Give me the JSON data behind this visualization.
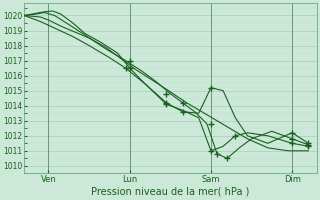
{
  "xlabel": "Pression niveau de la mer( hPa )",
  "bg_color": "#cce8d8",
  "grid_major_color": "#aaccbb",
  "grid_minor_color": "#bbddcc",
  "line_color": "#1a6020",
  "ylim": [
    1009.5,
    1020.8
  ],
  "yticks": [
    1010,
    1011,
    1012,
    1013,
    1014,
    1015,
    1016,
    1017,
    1018,
    1019,
    1020
  ],
  "xlim": [
    0,
    14.4
  ],
  "vline_positions": [
    1.2,
    5.2,
    9.2,
    13.2
  ],
  "xtick_positions": [
    1.2,
    5.2,
    9.2,
    13.2
  ],
  "xtick_labels": [
    "Ven",
    "Lun",
    "Sam",
    "Dim"
  ],
  "line1_x": [
    0.0,
    0.8,
    1.2,
    1.8,
    2.5,
    3.2,
    4.0,
    5.0,
    5.5,
    6.2,
    7.0,
    8.0,
    9.0,
    10.0,
    11.0,
    12.0,
    13.0,
    14.0
  ],
  "line1_y": [
    1020.0,
    1019.9,
    1019.7,
    1019.3,
    1018.9,
    1018.5,
    1017.9,
    1016.9,
    1016.4,
    1015.8,
    1015.1,
    1014.2,
    1013.4,
    1012.6,
    1011.8,
    1011.2,
    1011.0,
    1011.0
  ],
  "line2_x": [
    0.0,
    0.6,
    1.0,
    1.4,
    1.8,
    2.4,
    3.0,
    3.8,
    4.6,
    5.2,
    6.0,
    7.0,
    7.8,
    8.6,
    9.2,
    9.8,
    10.4,
    11.0,
    12.0,
    13.2,
    14.0
  ],
  "line2_y": [
    1020.0,
    1020.15,
    1020.25,
    1020.3,
    1020.1,
    1019.5,
    1018.8,
    1018.2,
    1017.5,
    1016.5,
    1015.4,
    1014.2,
    1013.6,
    1013.5,
    1015.2,
    1015.0,
    1013.2,
    1012.0,
    1011.5,
    1012.2,
    1011.5
  ],
  "line3_x": [
    0.0,
    0.6,
    1.0,
    1.5,
    2.2,
    3.0,
    4.0,
    5.0,
    5.8,
    6.5,
    7.2,
    7.8,
    8.4,
    9.0,
    9.5,
    10.0,
    10.6,
    11.2,
    12.2,
    13.2,
    14.0
  ],
  "line3_y": [
    1020.0,
    1020.1,
    1020.2,
    1020.0,
    1019.4,
    1018.7,
    1017.8,
    1017.0,
    1016.3,
    1015.6,
    1014.8,
    1014.2,
    1013.6,
    1012.8,
    1010.8,
    1010.5,
    1011.2,
    1011.8,
    1012.3,
    1011.8,
    1011.4
  ],
  "line4_x": [
    0.0,
    0.8,
    1.6,
    2.4,
    3.2,
    4.2,
    5.0,
    6.0,
    7.0,
    7.8,
    8.6,
    9.2,
    9.8,
    10.4,
    11.0,
    12.0,
    13.2,
    14.0
  ],
  "line4_y": [
    1020.0,
    1019.6,
    1019.1,
    1018.6,
    1018.0,
    1017.2,
    1016.5,
    1015.4,
    1014.1,
    1013.7,
    1013.2,
    1011.0,
    1011.3,
    1012.0,
    1012.2,
    1012.0,
    1011.5,
    1011.3
  ],
  "marker_style": "+",
  "marker_x": [
    5.2,
    7.0,
    7.8,
    9.2,
    13.2,
    14.0
  ],
  "marker2_xy": [
    [
      5.2,
      1016.5
    ],
    [
      7.0,
      1014.2
    ],
    [
      7.8,
      1013.6
    ],
    [
      9.2,
      1015.2
    ],
    [
      13.2,
      1012.2
    ],
    [
      14.0,
      1011.5
    ]
  ],
  "marker3_xy": [
    [
      5.2,
      1017.0
    ],
    [
      7.0,
      1014.8
    ],
    [
      7.8,
      1014.2
    ],
    [
      9.2,
      1012.8
    ],
    [
      9.5,
      1010.8
    ],
    [
      10.0,
      1010.5
    ],
    [
      13.2,
      1011.8
    ],
    [
      14.0,
      1011.4
    ]
  ],
  "marker4_xy": [
    [
      5.0,
      1016.5
    ],
    [
      7.0,
      1014.1
    ],
    [
      9.2,
      1011.0
    ],
    [
      10.4,
      1012.0
    ],
    [
      13.2,
      1011.5
    ],
    [
      14.0,
      1011.3
    ]
  ]
}
